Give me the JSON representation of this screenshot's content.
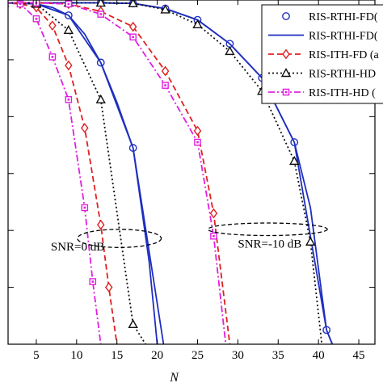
{
  "chart_data": {
    "type": "line",
    "xlabel": "N",
    "ylabel": "",
    "title": "",
    "xlim": [
      1.5,
      47
    ],
    "x_ticks": [
      5,
      10,
      15,
      20,
      25,
      30,
      35,
      40,
      45
    ],
    "x_tick_labels": [
      "5",
      "10",
      "15",
      "20",
      "25",
      "30",
      "35",
      "40",
      "45"
    ],
    "yscale": "log",
    "ylim_log10": [
      -6,
      0.05
    ],
    "y_ticks_log10": [
      -1,
      -2,
      -3,
      -4,
      -5
    ],
    "grid": false,
    "legend_position": "top-right",
    "annotations": [
      {
        "id": "snr0",
        "text": "SNR=0 dB",
        "x": 6.8,
        "log10_y": -4.35
      },
      {
        "id": "snr10",
        "text": "SNR=-10 dB",
        "x": 30.0,
        "log10_y": -4.3
      }
    ],
    "ellipses": [
      {
        "id": "ellipse-snr0",
        "cx": 15.3,
        "log10_cy": -4.14,
        "rx_data": 5.2,
        "ry_log10": 0.16
      },
      {
        "id": "ellipse-snr10",
        "cx": 33.7,
        "log10_cy": -3.98,
        "rx_data": 7.4,
        "ry_log10": 0.11
      }
    ],
    "series": [
      {
        "id": "rthi-fd-sim-0",
        "name": "RIS-RTHI-FD",
        "in_legend": true,
        "color": "#1f2fbf",
        "dash": "none",
        "marker": "circle",
        "x": [
          1,
          5,
          9,
          13,
          17,
          21
        ],
        "log10_y": [
          0,
          -0.02,
          -0.22,
          -1.05,
          -2.55,
          -6.2
        ]
      },
      {
        "id": "rthi-fd-ana-0",
        "name": "RIS-RTHI-FD",
        "in_legend": true,
        "color": "#1f2fbf",
        "dash": "none",
        "marker": "none",
        "x": [
          1,
          3,
          5,
          7,
          9,
          11,
          13,
          15,
          17,
          19,
          20
        ],
        "log10_y": [
          0,
          0,
          -0.02,
          -0.08,
          -0.22,
          -0.55,
          -1.05,
          -1.75,
          -2.55,
          -4.55,
          -6.0
        ]
      },
      {
        "id": "ith-fd-0",
        "name": "RIS-ITH-FD (",
        "in_legend": true,
        "color": "#e02020",
        "dash": "7,4",
        "marker": "diamond",
        "x": [
          1,
          3,
          5,
          7,
          9,
          11,
          13,
          14,
          15
        ],
        "log10_y": [
          0,
          -0.02,
          -0.08,
          -0.4,
          -1.1,
          -2.2,
          -3.9,
          -5.0,
          -6.0
        ]
      },
      {
        "id": "rthi-hd-0",
        "name": "RIS-RTHI-HD",
        "in_legend": true,
        "color": "#111111",
        "dash": "2,3",
        "marker": "triangle",
        "x": [
          1,
          5,
          9,
          13,
          17,
          19
        ],
        "log10_y": [
          0,
          -0.02,
          -0.48,
          -1.7,
          -5.65,
          -6.1
        ]
      },
      {
        "id": "ith-hd-0",
        "name": "RIS-ITH-HD (",
        "in_legend": true,
        "color": "#e020e0",
        "dash": "8,3,2,3",
        "marker": "square",
        "x": [
          1,
          3,
          5,
          7,
          9,
          11,
          12,
          13
        ],
        "log10_y": [
          0,
          -0.02,
          -0.28,
          -0.95,
          -1.7,
          -3.6,
          -4.9,
          -6.0
        ]
      },
      {
        "id": "rthi-fd-sim-10",
        "name": "RIS-RTHI-FD",
        "in_legend": false,
        "color": "#1f2fbf",
        "dash": "none",
        "marker": "circle",
        "x": [
          1,
          5,
          9,
          13,
          17,
          21,
          25,
          29,
          33,
          37,
          41,
          42
        ],
        "log10_y": [
          0,
          0,
          0,
          0,
          -0.01,
          -0.1,
          -0.3,
          -0.72,
          -1.32,
          -2.45,
          -5.75,
          -6.1
        ]
      },
      {
        "id": "rthi-fd-ana-10",
        "name": "RIS-RTHI-FD",
        "in_legend": false,
        "color": "#1f2fbf",
        "dash": "none",
        "marker": "none",
        "x": [
          1,
          13,
          17,
          21,
          25,
          29,
          33,
          37,
          39,
          41,
          42
        ],
        "log10_y": [
          0,
          0,
          -0.01,
          -0.1,
          -0.3,
          -0.72,
          -1.32,
          -2.45,
          -3.6,
          -5.75,
          -6.1
        ]
      },
      {
        "id": "rthi-hd-10",
        "name": "RIS-RTHI-HD",
        "in_legend": false,
        "color": "#111111",
        "dash": "2,3",
        "marker": "triangle",
        "x": [
          1,
          5,
          9,
          13,
          17,
          21,
          25,
          29,
          33,
          37,
          39,
          40.5
        ],
        "log10_y": [
          0,
          0,
          0,
          0,
          -0.01,
          -0.12,
          -0.38,
          -0.85,
          -1.55,
          -2.78,
          -4.2,
          -6.1
        ]
      },
      {
        "id": "ith-fd-10",
        "name": "RIS-ITH-FD (",
        "in_legend": false,
        "color": "#e02020",
        "dash": "7,4",
        "marker": "diamond",
        "x": [
          1,
          5,
          9,
          13,
          17,
          21,
          25,
          27,
          29
        ],
        "log10_y": [
          0,
          0,
          -0.02,
          -0.15,
          -0.42,
          -1.2,
          -2.25,
          -3.7,
          -6.0
        ]
      },
      {
        "id": "ith-hd-10",
        "name": "RIS-ITH-HD (",
        "in_legend": false,
        "color": "#e020e0",
        "dash": "8,3,2,3",
        "marker": "square",
        "x": [
          1,
          5,
          9,
          13,
          17,
          21,
          25,
          27,
          28.5
        ],
        "log10_y": [
          0,
          0,
          -0.02,
          -0.2,
          -0.6,
          -1.45,
          -2.45,
          -4.1,
          -6.0
        ]
      }
    ],
    "legend": [
      {
        "series_id": "rthi-fd-sim-0",
        "label": "RIS-RTHI-FD("
      },
      {
        "series_id": "rthi-fd-ana-0",
        "label": "RIS-RTHI-FD("
      },
      {
        "series_id": "ith-fd-0",
        "label": "RIS-ITH-FD (a"
      },
      {
        "series_id": "rthi-hd-0",
        "label": "RIS-RTHI-HD"
      },
      {
        "series_id": "ith-hd-0",
        "label": "RIS-ITH-HD ("
      }
    ]
  }
}
